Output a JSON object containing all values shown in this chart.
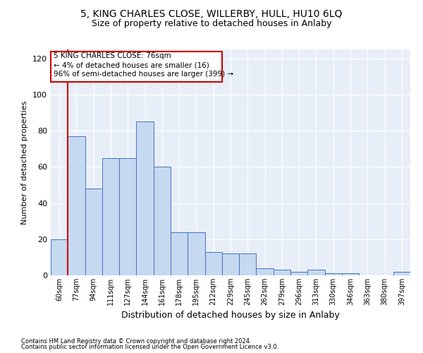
{
  "title1": "5, KING CHARLES CLOSE, WILLERBY, HULL, HU10 6LQ",
  "title2": "Size of property relative to detached houses in Anlaby",
  "xlabel": "Distribution of detached houses by size in Anlaby",
  "ylabel": "Number of detached properties",
  "categories": [
    "60sqm",
    "77sqm",
    "94sqm",
    "111sqm",
    "127sqm",
    "144sqm",
    "161sqm",
    "178sqm",
    "195sqm",
    "212sqm",
    "229sqm",
    "245sqm",
    "262sqm",
    "279sqm",
    "296sqm",
    "313sqm",
    "330sqm",
    "346sqm",
    "363sqm",
    "380sqm",
    "397sqm"
  ],
  "values": [
    20,
    77,
    48,
    65,
    65,
    85,
    60,
    24,
    24,
    13,
    12,
    12,
    4,
    3,
    2,
    3,
    1,
    1,
    0,
    0,
    2
  ],
  "bar_color": "#c5d9f1",
  "bar_edge_color": "#4472c4",
  "marker_line_color": "#cc0000",
  "annotation_line1": "5 KING CHARLES CLOSE: 76sqm",
  "annotation_line2": "← 4% of detached houses are smaller (16)",
  "annotation_line3": "96% of semi-detached houses are larger (399) →",
  "annotation_box_color": "#cc0000",
  "ylim": [
    0,
    125
  ],
  "yticks": [
    0,
    20,
    40,
    60,
    80,
    100,
    120
  ],
  "footnote1": "Contains HM Land Registry data © Crown copyright and database right 2024.",
  "footnote2": "Contains public sector information licensed under the Open Government Licence v3.0.",
  "bg_color": "#e8eef7",
  "fig_bg": "#ffffff",
  "title1_fontsize": 10,
  "title2_fontsize": 9,
  "xlabel_fontsize": 9,
  "ylabel_fontsize": 8
}
